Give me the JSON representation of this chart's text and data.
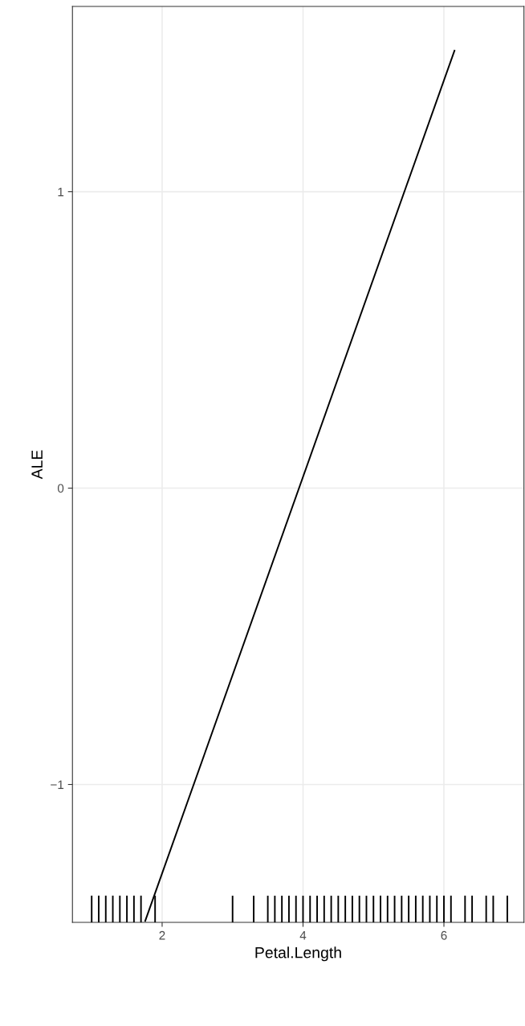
{
  "chart_data": {
    "type": "line",
    "xlabel": "Petal.Length",
    "ylabel": "ALE",
    "xlim": [
      0.727,
      7.136
    ],
    "ylim": [
      -1.465,
      1.625
    ],
    "xticks": [
      2,
      4,
      6
    ],
    "yticks": [
      {
        "value": -1,
        "label": "−1"
      },
      0,
      1
    ],
    "grid": true,
    "marker": "none",
    "line_style": "solid",
    "series": [
      {
        "color": "#000000",
        "x": [
          1.76,
          6.15
        ],
        "values": [
          -1.46,
          1.476
        ]
      },
      {
        "type": "bar",
        "color": "#000000",
        "x": [
          1.0,
          1.1,
          1.2,
          1.3,
          1.4,
          1.5,
          1.6,
          1.7,
          1.9,
          3.0,
          3.3,
          3.5,
          3.6,
          3.7,
          3.8,
          3.9,
          4.0,
          4.1,
          4.2,
          4.3,
          4.4,
          4.5,
          4.6,
          4.7,
          4.8,
          4.9,
          5.0,
          5.1,
          5.2,
          5.3,
          5.4,
          5.5,
          5.6,
          5.7,
          5.8,
          5.9,
          6.0,
          6.1,
          6.3,
          6.4,
          6.6,
          6.7,
          6.9
        ],
        "base": [
          -1.465,
          -1.465,
          -1.465,
          -1.465,
          -1.465,
          -1.465,
          -1.465,
          -1.465,
          -1.465,
          -1.465,
          -1.465,
          -1.465,
          -1.465,
          -1.465,
          -1.465,
          -1.465,
          -1.465,
          -1.465,
          -1.465,
          -1.465,
          -1.465,
          -1.465,
          -1.465,
          -1.465,
          -1.465,
          -1.465,
          -1.465,
          -1.465,
          -1.465,
          -1.465,
          -1.465,
          -1.465,
          -1.465,
          -1.465,
          -1.465,
          -1.465,
          -1.465,
          -1.465,
          -1.465,
          -1.465,
          -1.465,
          -1.465,
          -1.465
        ],
        "values": [
          0.09,
          0.09,
          0.09,
          0.09,
          0.09,
          0.09,
          0.09,
          0.09,
          0.09,
          0.09,
          0.09,
          0.09,
          0.09,
          0.09,
          0.09,
          0.09,
          0.09,
          0.09,
          0.09,
          0.09,
          0.09,
          0.09,
          0.09,
          0.09,
          0.09,
          0.09,
          0.09,
          0.09,
          0.09,
          0.09,
          0.09,
          0.09,
          0.09,
          0.09,
          0.09,
          0.09,
          0.09,
          0.09,
          0.09,
          0.09,
          0.09,
          0.09,
          0.09
        ]
      }
    ]
  }
}
